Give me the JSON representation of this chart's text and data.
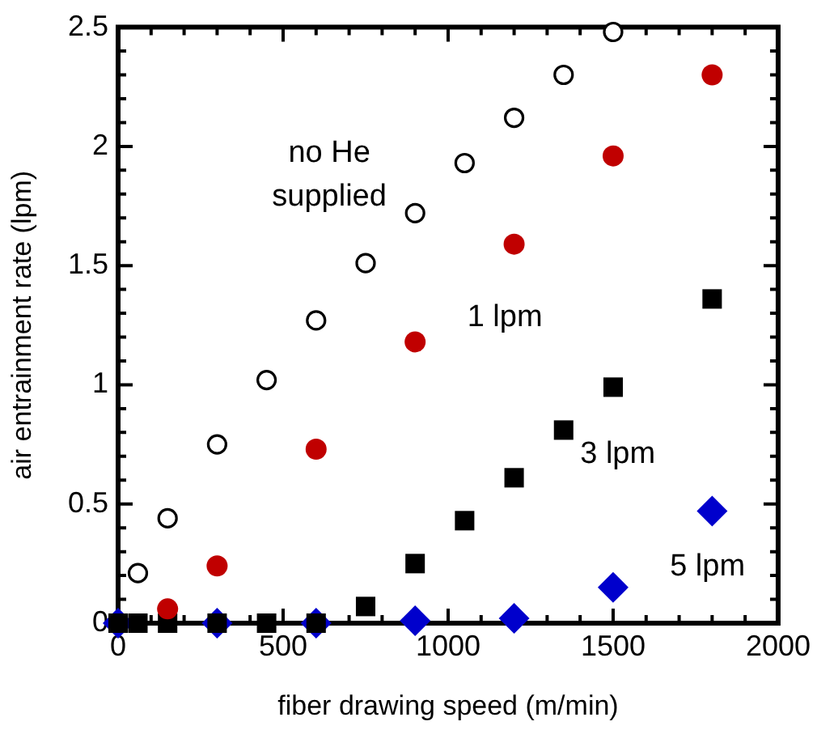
{
  "chart_data": {
    "type": "scatter",
    "xlabel": "fiber drawing speed (m/min)",
    "ylabel": "air entrainment rate (lpm)",
    "xlim": [
      0,
      2000
    ],
    "ylim": [
      0,
      2.5
    ],
    "xticks": [
      0,
      {
        "value": 100,
        "label": null
      },
      {
        "value": 200,
        "label": null
      },
      {
        "value": 300,
        "label": null
      },
      {
        "value": 400,
        "label": null
      },
      500,
      {
        "value": 600,
        "label": null
      },
      {
        "value": 700,
        "label": null
      },
      {
        "value": 800,
        "label": null
      },
      {
        "value": 900,
        "label": null
      },
      1000,
      {
        "value": 1100,
        "label": null
      },
      {
        "value": 1200,
        "label": null
      },
      {
        "value": 1300,
        "label": null
      },
      {
        "value": 1400,
        "label": null
      },
      1500,
      {
        "value": 1600,
        "label": null
      },
      {
        "value": 1700,
        "label": null
      },
      {
        "value": 1800,
        "label": null
      },
      {
        "value": 1900,
        "label": null
      },
      2000
    ],
    "yticks": [
      0,
      {
        "value": 0.1,
        "label": null
      },
      {
        "value": 0.2,
        "label": null
      },
      {
        "value": 0.3,
        "label": null
      },
      {
        "value": 0.4,
        "label": null
      },
      0.5,
      {
        "value": 0.6,
        "label": null
      },
      {
        "value": 0.7,
        "label": null
      },
      {
        "value": 0.8,
        "label": null
      },
      {
        "value": 0.9,
        "label": null
      },
      1,
      {
        "value": 1.1,
        "label": null
      },
      {
        "value": 1.2,
        "label": null
      },
      {
        "value": 1.3,
        "label": null
      },
      {
        "value": 1.4,
        "label": null
      },
      1.5,
      {
        "value": 1.6,
        "label": null
      },
      {
        "value": 1.7,
        "label": null
      },
      {
        "value": 1.8,
        "label": null
      },
      {
        "value": 1.9,
        "label": null
      },
      2,
      {
        "value": 2.1,
        "label": null
      },
      {
        "value": 2.2,
        "label": null
      },
      {
        "value": 2.3,
        "label": null
      },
      {
        "value": 2.4,
        "label": null
      },
      2.5
    ],
    "grid": false,
    "legend": false,
    "series": [
      {
        "color": "#ffffff",
        "marker": "circle",
        "x": [
          60,
          150,
          300,
          450,
          600,
          750,
          900,
          1050,
          1200,
          1350,
          1500
        ],
        "values": [
          0.21,
          0.44,
          0.75,
          1.02,
          1.27,
          1.51,
          1.72,
          1.93,
          2.12,
          2.3,
          2.48
        ]
      },
      {
        "color": "#c00000",
        "marker": "circle",
        "x": [
          150,
          300,
          600,
          900,
          1200,
          1500,
          1800
        ],
        "values": [
          0.06,
          0.24,
          0.73,
          1.18,
          1.59,
          1.96,
          2.3
        ]
      },
      {
        "color": "#000000",
        "marker": "square",
        "x": [
          0,
          60,
          150,
          300,
          450,
          600,
          750,
          900,
          1050,
          1200,
          1350,
          1500,
          1800
        ],
        "values": [
          0,
          0,
          0,
          0,
          0,
          0,
          0.07,
          0.25,
          0.43,
          0.61,
          0.81,
          0.99,
          1.36
        ]
      },
      {
        "color": "#0000cc",
        "marker": "diamond",
        "x": [
          0,
          300,
          600,
          900,
          1200,
          1500,
          1800
        ],
        "values": [
          0,
          0,
          0,
          0.01,
          0.02,
          0.15,
          0.47
        ]
      }
    ],
    "annotations": [
      "no He\nsupplied",
      "1 lpm",
      "3 lpm",
      "5 lpm"
    ]
  }
}
